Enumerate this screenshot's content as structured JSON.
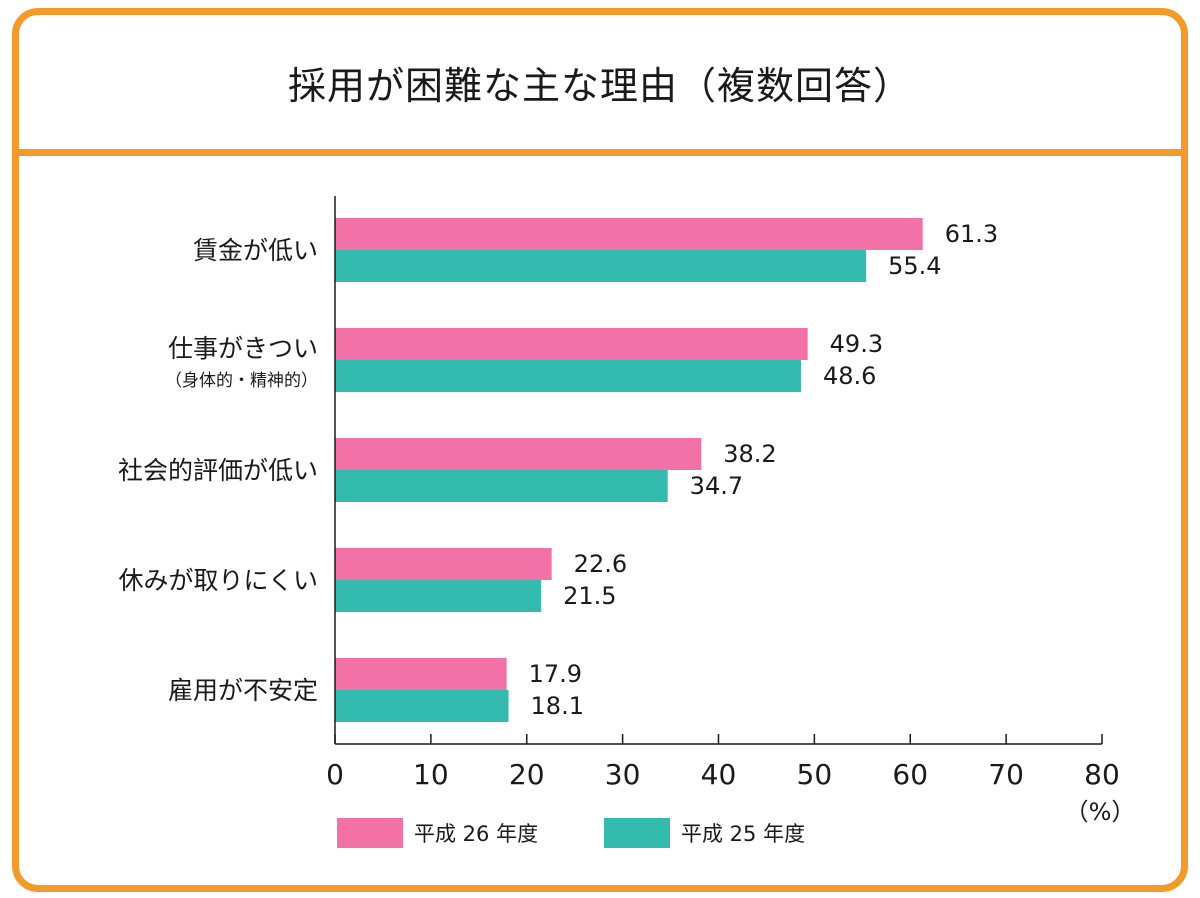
{
  "colors": {
    "frame": "#f39a2b",
    "series_2014": "#f272a8",
    "series_2013": "#33bbb0"
  },
  "chart_data": {
    "type": "bar",
    "orientation": "horizontal",
    "title": "採用が困難な主な理由（複数回答）",
    "categories": [
      {
        "label": "賃金が低い",
        "sub": ""
      },
      {
        "label": "仕事がきつい",
        "sub": "（身体的・精神的）"
      },
      {
        "label": "社会的評価が低い",
        "sub": ""
      },
      {
        "label": "休みが取りにくい",
        "sub": ""
      },
      {
        "label": "雇用が不安定",
        "sub": ""
      }
    ],
    "series": [
      {
        "name": "平成 26 年度",
        "values": [
          61.3,
          49.3,
          38.2,
          22.6,
          17.9
        ]
      },
      {
        "name": "平成 25 年度",
        "values": [
          55.4,
          48.6,
          34.7,
          21.5,
          18.1
        ]
      }
    ],
    "xlim": [
      0,
      80
    ],
    "xticks": [
      "0",
      "10",
      "20",
      "30",
      "40",
      "50",
      "60",
      "70",
      "80"
    ],
    "unit": "（%）",
    "legend": "bottom",
    "grid": false
  }
}
